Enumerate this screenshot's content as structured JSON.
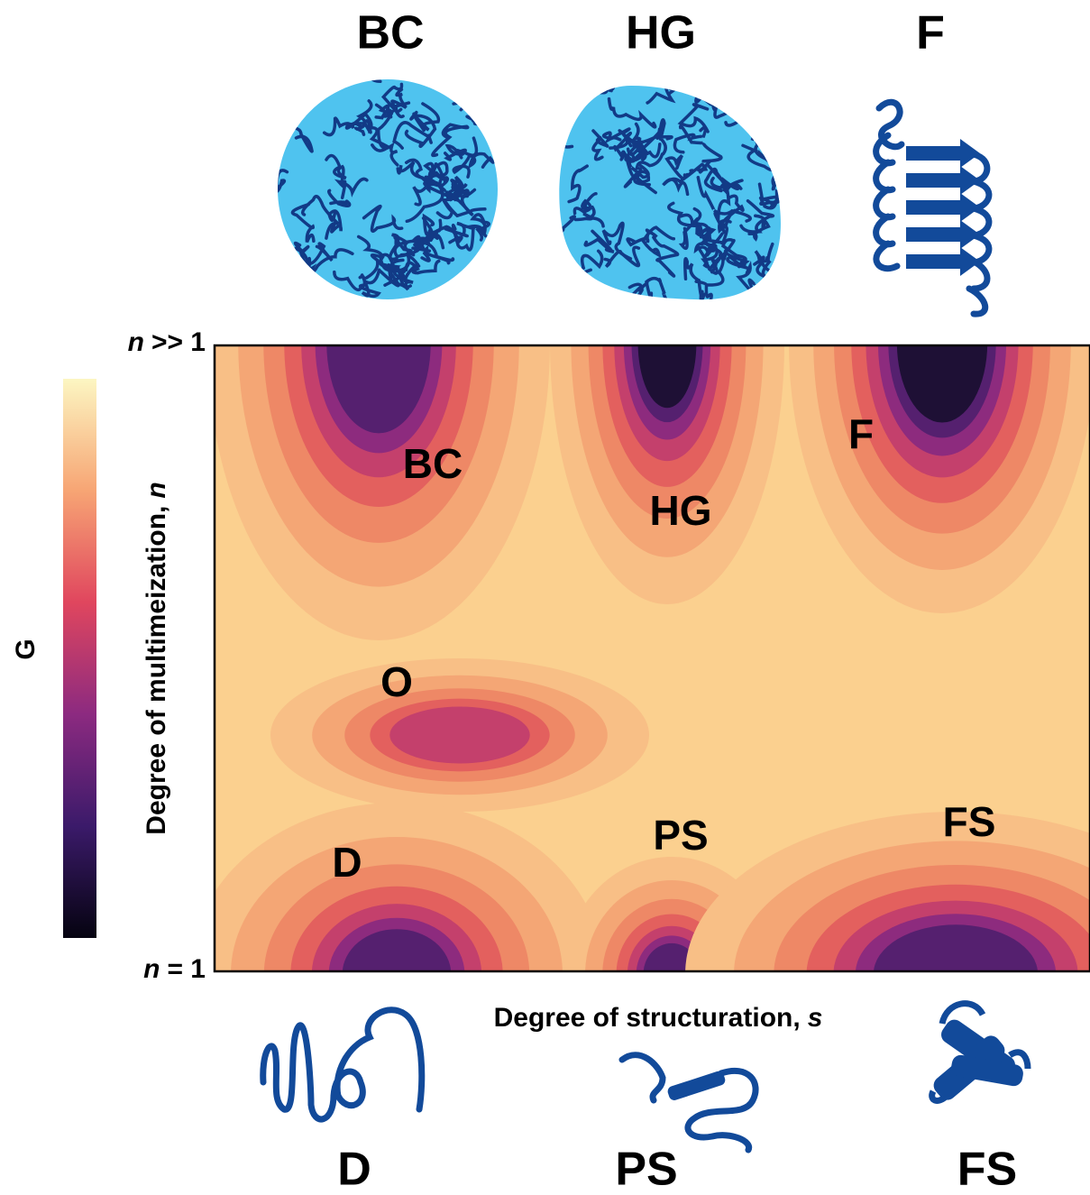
{
  "top_labels": [
    "BC",
    "HG",
    "F"
  ],
  "bottom_labels": [
    "D",
    "PS",
    "FS"
  ],
  "colorbar_label": "G",
  "y_axis": {
    "label": "Degree of multimeization,",
    "variable": "n",
    "top_tick": {
      "variable": "n",
      "text": ">> 1"
    },
    "bottom_tick": {
      "variable": "n",
      "text": "= 1"
    }
  },
  "x_axis": {
    "label": "Degree of structuration,",
    "variable": "s"
  },
  "regions": [
    "BC",
    "HG",
    "F",
    "O",
    "D",
    "PS",
    "FS"
  ]
}
